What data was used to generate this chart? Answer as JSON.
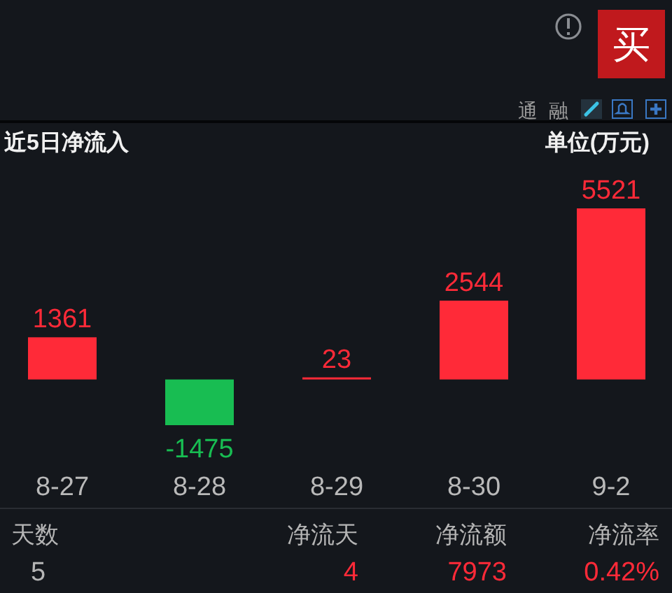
{
  "chart_data": {
    "type": "bar",
    "title": "近5日净流入",
    "subtitle": "单位(万元)",
    "categories": [
      "8-27",
      "8-28",
      "8-29",
      "8-30",
      "9-2"
    ],
    "values": [
      1361,
      -1475,
      23,
      2544,
      5521
    ],
    "colors": [
      "#ff2a38",
      "#18bd52",
      "#ff2a38",
      "#ff2a38",
      "#ff2a38"
    ],
    "data_labels": true,
    "annotations": [
      "天数",
      "5",
      "净流天",
      "4",
      "净流额",
      "7973",
      "净流率",
      "0.42%",
      "买",
      "通",
      "融"
    ]
  }
}
